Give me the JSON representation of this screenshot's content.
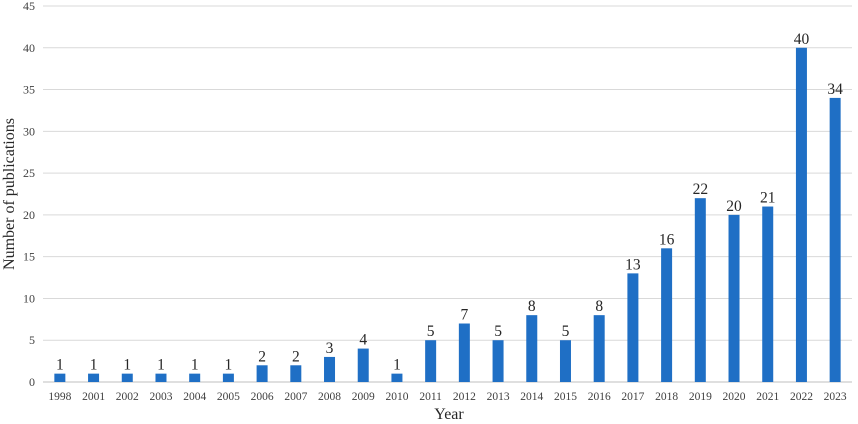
{
  "chart_data": {
    "type": "bar",
    "title": "",
    "xlabel": "Year",
    "ylabel": "Number of publications",
    "ylim": [
      0,
      45
    ],
    "yticks": [
      0,
      5,
      10,
      15,
      20,
      25,
      30,
      35,
      40,
      45
    ],
    "grid": true,
    "legend": "none",
    "bar_color": "#1f6fc5",
    "categories": [
      "1998",
      "2001",
      "2002",
      "2003",
      "2004",
      "2005",
      "2006",
      "2007",
      "2008",
      "2009",
      "2010",
      "2011",
      "2012",
      "2013",
      "2014",
      "2015",
      "2016",
      "2017",
      "2018",
      "2019",
      "2020",
      "2021",
      "2022",
      "2023"
    ],
    "values": [
      1,
      1,
      1,
      1,
      1,
      1,
      2,
      2,
      3,
      4,
      1,
      5,
      7,
      5,
      8,
      5,
      8,
      13,
      16,
      22,
      20,
      21,
      40,
      34
    ],
    "data_labels": true
  }
}
